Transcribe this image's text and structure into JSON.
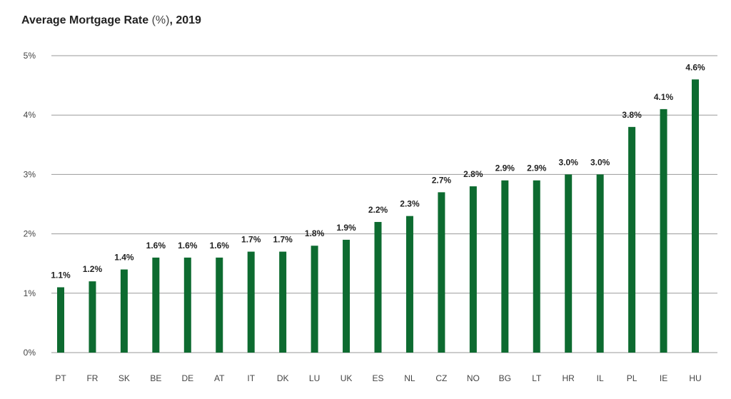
{
  "title": {
    "main": "Average Mortgage Rate",
    "unit": " (%)",
    "suffix": ", 2019"
  },
  "colors": {
    "bar": "#0d6b30",
    "grid": "#9a9a9a",
    "text": "#222222"
  },
  "chart_data": {
    "type": "bar",
    "title": "Average Mortgage Rate (%), 2019",
    "xlabel": "",
    "ylabel": "",
    "categories": [
      "PT",
      "FR",
      "SK",
      "BE",
      "DE",
      "AT",
      "IT",
      "DK",
      "LU",
      "UK",
      "ES",
      "NL",
      "CZ",
      "NO",
      "BG",
      "LT",
      "HR",
      "IL",
      "PL",
      "IE",
      "HU"
    ],
    "values": [
      1.1,
      1.2,
      1.4,
      1.6,
      1.6,
      1.6,
      1.7,
      1.7,
      1.8,
      1.9,
      2.2,
      2.3,
      2.7,
      2.8,
      2.9,
      2.9,
      3.0,
      3.0,
      3.8,
      4.1,
      4.6
    ],
    "data_labels": [
      "1.1%",
      "1.2%",
      "1.4%",
      "1.6%",
      "1.6%",
      "1.6%",
      "1.7%",
      "1.7%",
      "1.8%",
      "1.9%",
      "2.2%",
      "2.3%",
      "2.7%",
      "2.8%",
      "2.9%",
      "2.9%",
      "3.0%",
      "3.0%",
      "3.8%",
      "4.1%",
      "4.6%"
    ],
    "ylim": [
      0,
      5
    ],
    "yticks": [
      0,
      1,
      2,
      3,
      4,
      5
    ],
    "ytick_labels": [
      "0%",
      "1%",
      "2%",
      "3%",
      "4%",
      "5%"
    ],
    "grid": true,
    "legend": "none"
  }
}
